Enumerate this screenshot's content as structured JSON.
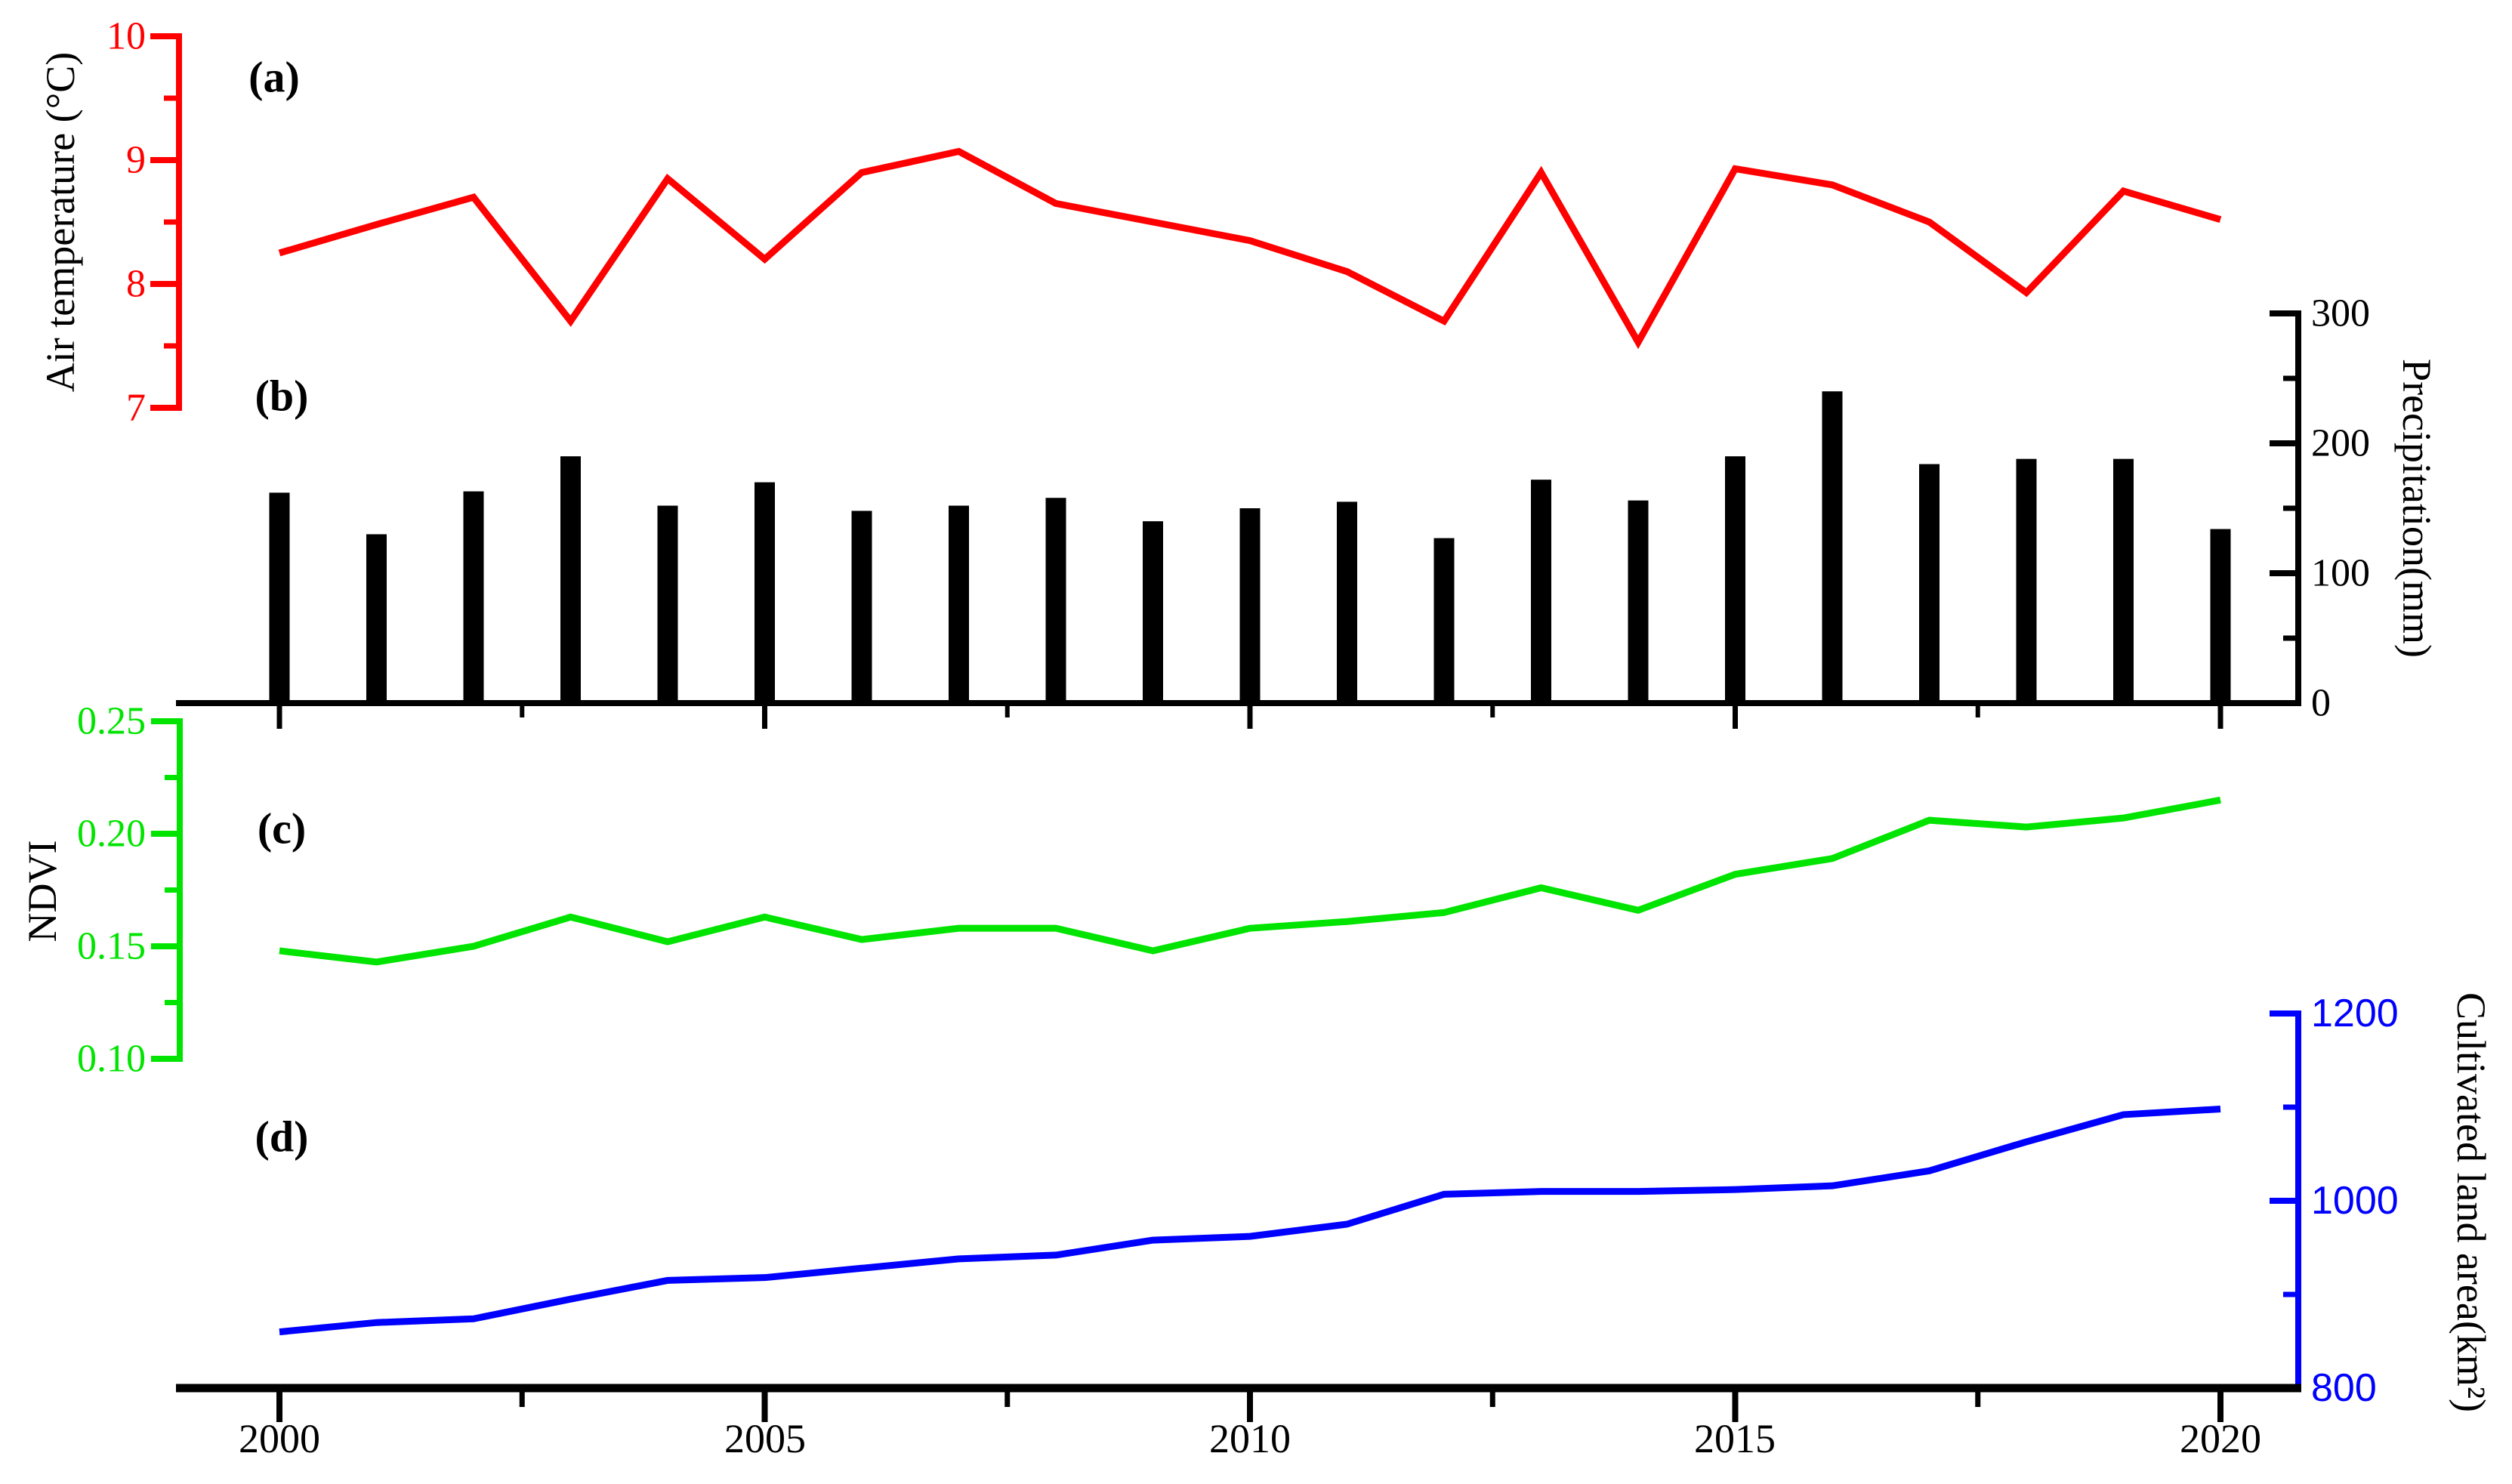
{
  "figure": {
    "background": "#ffffff",
    "panels": [
      {
        "label": "(a)"
      },
      {
        "label": "(b)"
      },
      {
        "label": "(c)"
      },
      {
        "label": "(d)"
      }
    ],
    "x_axis": {
      "tick_labels": [
        "2000",
        "2005",
        "2010",
        "2015",
        "2020"
      ],
      "tick_years": [
        2000,
        2005,
        2010,
        2015,
        2020
      ],
      "minor_tick_years": [
        2002.5,
        2007.5,
        2012.5,
        2017.5
      ],
      "years": [
        2000,
        2001,
        2002,
        2003,
        2004,
        2005,
        2006,
        2007,
        2008,
        2009,
        2010,
        2011,
        2012,
        2013,
        2014,
        2015,
        2016,
        2017,
        2018,
        2019,
        2020
      ]
    }
  },
  "chart_data": [
    {
      "id": "air_temperature",
      "type": "line",
      "panel": "(a)",
      "ylabel": "Air temperature (°C)",
      "color": "#ff0000",
      "axis_side": "left",
      "ylim": [
        7,
        10
      ],
      "tick_labels": [
        "10",
        "9",
        "8",
        "7"
      ],
      "tick_values": [
        10,
        9,
        8,
        7
      ],
      "minor_tick_values": [
        9.5,
        8.5,
        7.5
      ],
      "x": [
        2000,
        2001,
        2002,
        2003,
        2004,
        2005,
        2006,
        2007,
        2008,
        2009,
        2010,
        2011,
        2012,
        2013,
        2014,
        2015,
        2016,
        2017,
        2018,
        2019,
        2020
      ],
      "values": [
        8.25,
        8.48,
        8.7,
        7.7,
        8.85,
        8.2,
        8.9,
        9.07,
        8.65,
        8.5,
        8.35,
        8.1,
        7.7,
        8.9,
        7.53,
        8.93,
        8.8,
        8.5,
        7.93,
        8.75,
        8.52
      ]
    },
    {
      "id": "precipitation",
      "type": "bar",
      "panel": "(b)",
      "ylabel": "Precipitation(mm)",
      "color": "#000000",
      "axis_side": "right",
      "ylim": [
        0,
        300
      ],
      "tick_labels": [
        "300",
        "200",
        "100",
        "0"
      ],
      "tick_values": [
        300,
        200,
        100,
        0
      ],
      "minor_tick_values": [
        250,
        150,
        50
      ],
      "x": [
        2000,
        2001,
        2002,
        2003,
        2004,
        2005,
        2006,
        2007,
        2008,
        2009,
        2010,
        2011,
        2012,
        2013,
        2014,
        2015,
        2016,
        2017,
        2018,
        2019,
        2020
      ],
      "values": [
        162,
        130,
        163,
        190,
        152,
        170,
        148,
        152,
        158,
        140,
        150,
        155,
        127,
        172,
        156,
        190,
        240,
        184,
        188,
        188,
        134
      ]
    },
    {
      "id": "ndvi",
      "type": "line",
      "panel": "(c)",
      "ylabel": "NDVI",
      "color": "#00e400",
      "axis_side": "left",
      "ylim": [
        0.1,
        0.25
      ],
      "tick_labels": [
        "0.25",
        "0.20",
        "0.15",
        "0.10"
      ],
      "tick_values": [
        0.25,
        0.2,
        0.15,
        0.1
      ],
      "minor_tick_values": [
        0.225,
        0.175,
        0.125
      ],
      "x": [
        2000,
        2001,
        2002,
        2003,
        2004,
        2005,
        2006,
        2007,
        2008,
        2009,
        2010,
        2011,
        2012,
        2013,
        2014,
        2015,
        2016,
        2017,
        2018,
        2019,
        2020
      ],
      "values": [
        0.148,
        0.143,
        0.15,
        0.163,
        0.152,
        0.163,
        0.153,
        0.158,
        0.158,
        0.148,
        0.158,
        0.161,
        0.165,
        0.176,
        0.166,
        0.182,
        0.189,
        0.206,
        0.203,
        0.207,
        0.215
      ]
    },
    {
      "id": "cultivated_land_area",
      "type": "line",
      "panel": "(d)",
      "ylabel": "Cultivated land area(km²)",
      "color": "#0000ff",
      "axis_side": "right",
      "ylim": [
        800,
        1200
      ],
      "tick_labels": [
        "1200",
        "1000",
        "800"
      ],
      "tick_values": [
        1200,
        1000,
        800
      ],
      "minor_tick_values": [
        1100,
        900
      ],
      "x": [
        2000,
        2001,
        2002,
        2003,
        2004,
        2005,
        2006,
        2007,
        2008,
        2009,
        2010,
        2011,
        2012,
        2013,
        2014,
        2015,
        2016,
        2017,
        2018,
        2019,
        2020
      ],
      "values": [
        860,
        870,
        874,
        895,
        915,
        918,
        928,
        938,
        942,
        958,
        962,
        975,
        1007,
        1010,
        1010,
        1012,
        1016,
        1032,
        1063,
        1092,
        1098
      ]
    }
  ]
}
